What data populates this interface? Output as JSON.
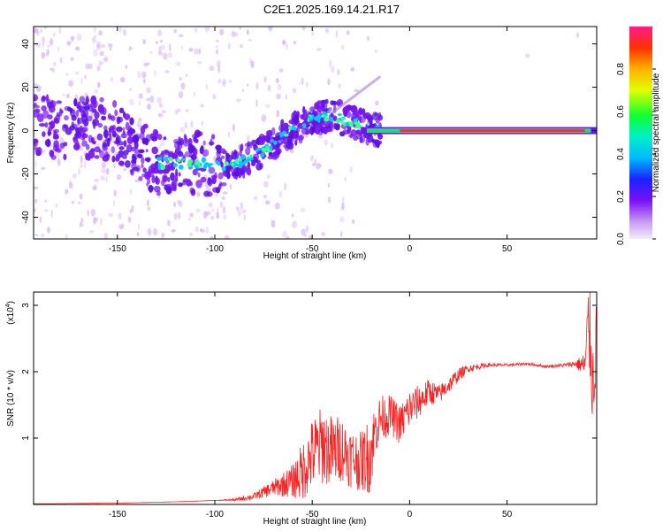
{
  "title": "C2E1.2025.169.14.21.R17",
  "chart_data": [
    {
      "type": "heatmap",
      "xlabel": "Height of straight line (km)",
      "ylabel": "Frequency (Hz)",
      "xlim": [
        -193,
        96
      ],
      "ylim": [
        -50,
        48
      ],
      "x_ticks": [
        -150,
        -100,
        -50,
        0,
        50
      ],
      "y_ticks": [
        -40,
        -20,
        0,
        20,
        40
      ],
      "colorbar": {
        "label": "Normalized spectral amplitude",
        "range": [
          0,
          1
        ],
        "ticks": [
          "0.0",
          "0.2",
          "0.4",
          "0.6",
          "0.8"
        ]
      },
      "ridge": {
        "x": [
          -193,
          -150,
          -130,
          -110,
          -92,
          -80,
          -70,
          -60,
          -50,
          -40,
          -30,
          -20,
          -10,
          0,
          10,
          20,
          30,
          50,
          70,
          90,
          96
        ],
        "y": [
          2,
          0,
          -15,
          -15,
          -16,
          -12,
          -6,
          0,
          6,
          7,
          4,
          1,
          0,
          -1,
          -1,
          0,
          0,
          0,
          0,
          0,
          0
        ]
      },
      "colors": {
        "low": "#d8b8f2",
        "mid": "#7a16f0",
        "ridge": "#00c8ff",
        "line_peak": "#ff2a00"
      }
    },
    {
      "type": "line",
      "xlabel": "Height of straight line (km)",
      "ylabel": "SNR (10 * v/v)",
      "y_multiplier": "(x10",
      "y_multiplier_exp": "4",
      "xlim": [
        -193,
        96
      ],
      "ylim": [
        0,
        3.2
      ],
      "x_ticks": [
        -150,
        -100,
        -50,
        0,
        50
      ],
      "y_ticks": [
        1,
        2,
        3
      ],
      "series": [
        {
          "color": "#ff2020",
          "x": [
            -193,
            -150,
            -120,
            -100,
            -90,
            -80,
            -70,
            -60,
            -55,
            -50,
            -45,
            -40,
            -35,
            -30,
            -25,
            -20,
            -18,
            -15,
            -10,
            -5,
            0,
            5,
            10,
            15,
            20,
            25,
            30,
            40,
            50,
            60,
            70,
            80,
            85,
            90,
            92,
            94,
            96
          ],
          "y": [
            0.01,
            0.02,
            0.04,
            0.06,
            0.07,
            0.12,
            0.25,
            0.35,
            0.5,
            0.75,
            0.9,
            0.8,
            0.85,
            0.7,
            0.65,
            0.75,
            1.1,
            1.3,
            1.35,
            1.2,
            1.45,
            1.55,
            1.7,
            1.65,
            1.8,
            1.95,
            2.05,
            2.1,
            2.1,
            2.12,
            2.08,
            2.1,
            2.12,
            2.1,
            2.8,
            1.8,
            2.5
          ],
          "noise": [
            0,
            0,
            0,
            0,
            0.02,
            0.05,
            0.12,
            0.25,
            0.45,
            0.55,
            0.6,
            0.55,
            0.5,
            0.45,
            0.45,
            0.6,
            0.4,
            0.35,
            0.3,
            0.3,
            0.3,
            0.25,
            0.2,
            0.15,
            0.12,
            0.1,
            0.06,
            0.03,
            0.02,
            0.02,
            0.02,
            0.03,
            0.05,
            0.2,
            0.8,
            0.7,
            0.6
          ]
        }
      ]
    }
  ]
}
